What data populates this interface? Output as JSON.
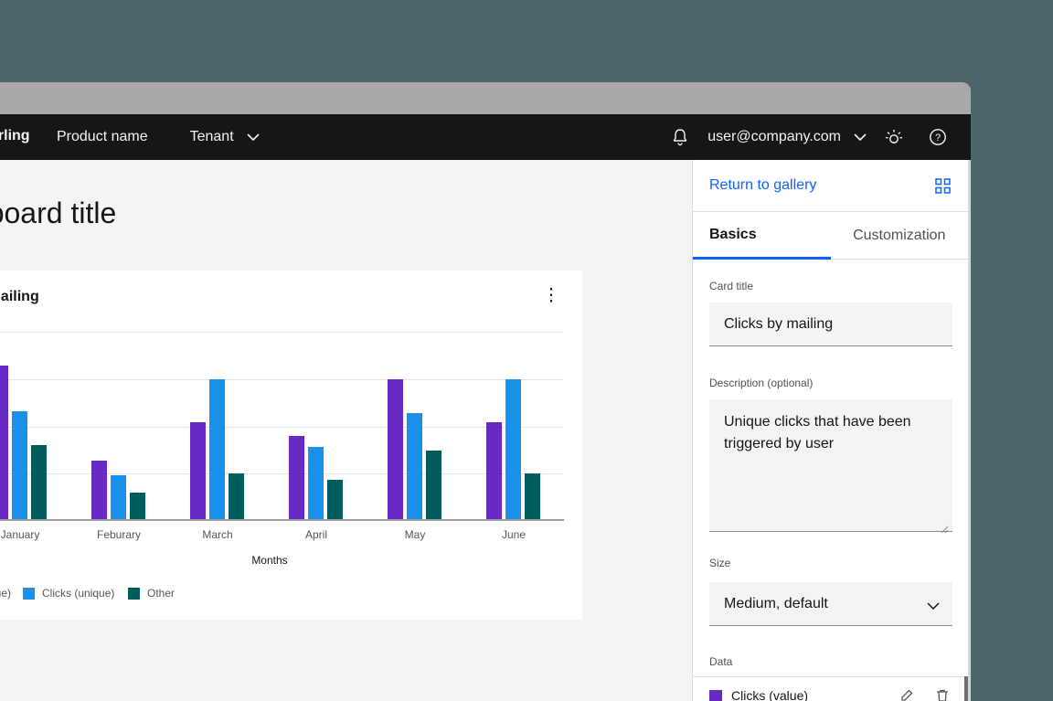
{
  "header": {
    "brand": "Sterling",
    "product_name": "Product name",
    "tenant": "Tenant",
    "user_email": "user@company.com"
  },
  "page": {
    "title": "Dashboard title"
  },
  "card": {
    "title": "Clicks by mailing",
    "overflow_menu": "⋮"
  },
  "chart_data": {
    "type": "bar",
    "title": "Clicks by mailing",
    "categories": [
      "January",
      "Feburary",
      "March",
      "April",
      "May",
      "June"
    ],
    "series": [
      {
        "name": "Clicks (value)",
        "color": "#6929c4",
        "values": [
          81,
          31,
          51,
          44,
          74,
          51
        ]
      },
      {
        "name": "Clicks (unique)",
        "color": "#1991eb",
        "values": [
          57,
          23,
          74,
          38,
          56,
          74
        ]
      },
      {
        "name": "Other",
        "color": "#005d5d",
        "values": [
          39,
          14,
          24,
          21,
          36,
          24
        ]
      }
    ],
    "xlabel": "Months",
    "ylabel": "",
    "ylim": [
      0,
      100
    ],
    "grid": true,
    "legend_position": "bottom"
  },
  "panel": {
    "return_link": "Return to gallery",
    "tabs": [
      {
        "label": "Basics",
        "active": true
      },
      {
        "label": "Customization",
        "active": false
      }
    ],
    "card_title_field": {
      "label": "Card title",
      "value": "Clicks by mailing"
    },
    "description_field": {
      "label": "Description (optional)",
      "value": "Unique clicks that have been triggered by user"
    },
    "size_field": {
      "label": "Size",
      "value": "Medium, default"
    },
    "data_section": {
      "label": "Data",
      "first_item": "Clicks (value)"
    }
  },
  "colors": {
    "accent_blue": "#0f62fe",
    "series_purple": "#6929c4",
    "series_cyan": "#1991eb",
    "series_teal": "#005d5d",
    "header_bg": "#161616",
    "titlebar_gray": "#a9a9a9",
    "desktop_bg": "#4d666c"
  }
}
